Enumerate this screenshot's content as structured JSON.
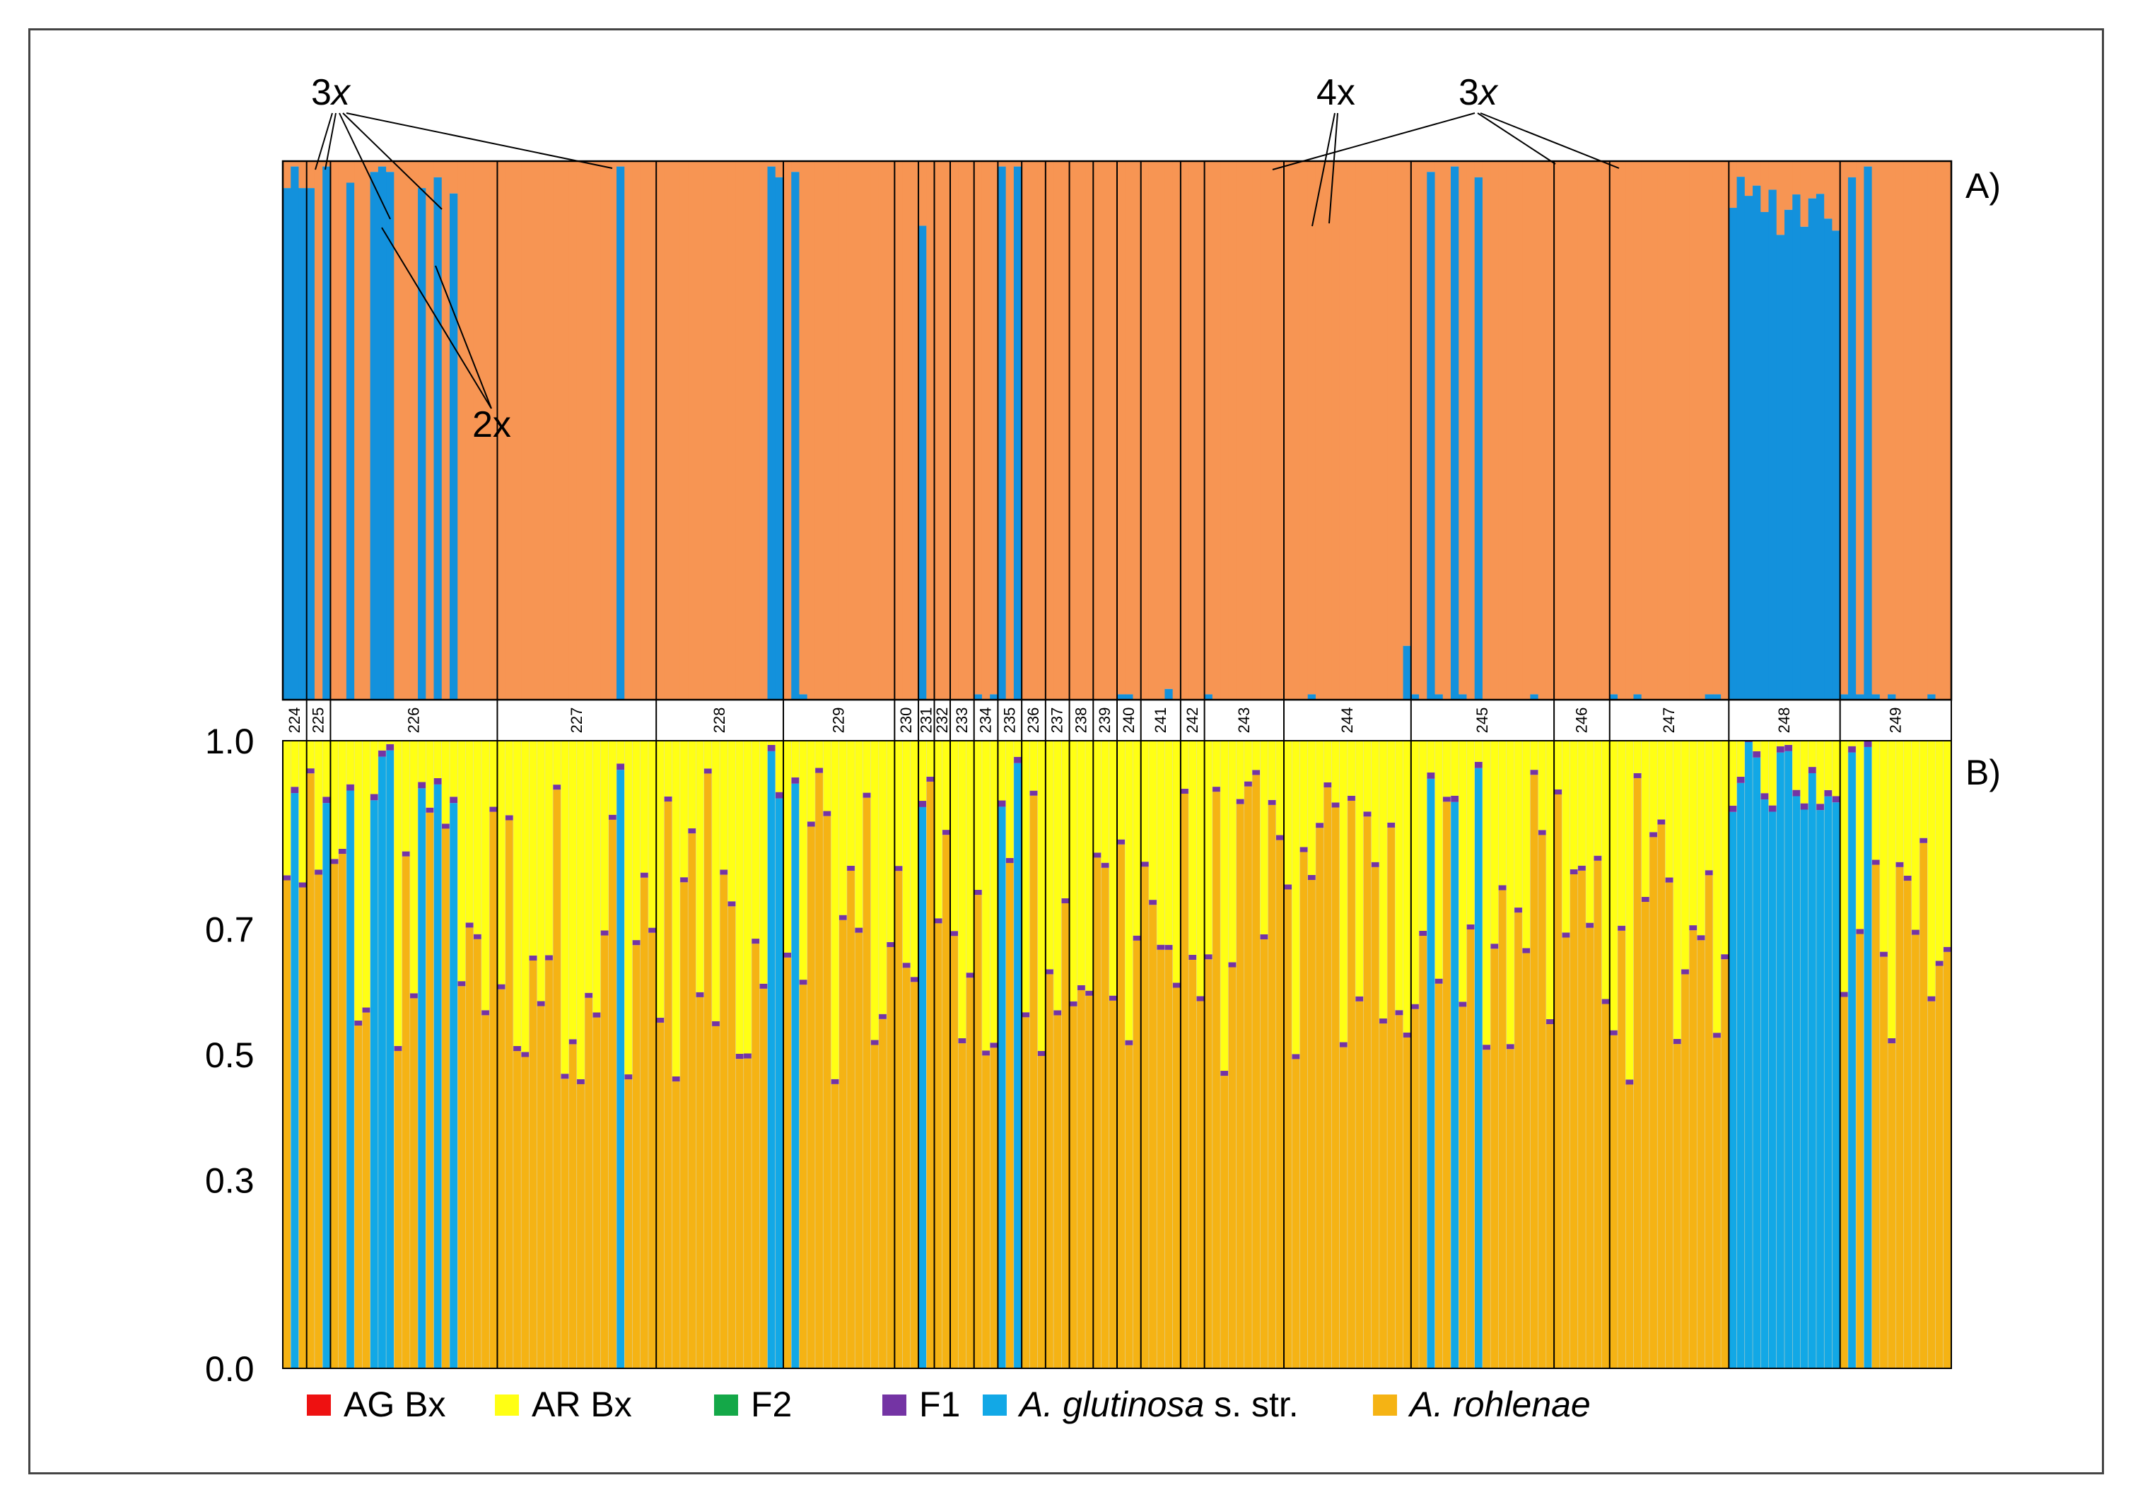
{
  "chart_data": [
    {
      "panel": "A)",
      "type": "bar",
      "stacked": true,
      "description_note": "STRUCTURE admixture proportions, K=2",
      "colors": {
        "cluster_glutinosa": "#1391DC",
        "cluster_rohlenae": "#F79553"
      },
      "ylim": [
        0,
        1
      ],
      "annotations": [
        "3x",
        "2x",
        "4x",
        "3x"
      ]
    },
    {
      "panel": "B)",
      "type": "bar",
      "stacked": true,
      "ylim": [
        0.0,
        1.0
      ],
      "ytick_labels": [
        "1.0",
        "0.7",
        "0.5",
        "0.3",
        "0.0"
      ],
      "ytick_values": [
        1.0,
        0.7,
        0.5,
        0.3,
        0.0
      ],
      "legend": [
        {
          "label": "AG Bx",
          "color": "#EE1111",
          "italic": false
        },
        {
          "label": "AR Bx",
          "color": "#FFFF14",
          "italic": false
        },
        {
          "label": "F2",
          "color": "#14A848",
          "italic": false
        },
        {
          "label": "F1",
          "color": "#7434A4",
          "italic": false
        },
        {
          "label": "A. glutinosa",
          "suffix": " s. str.",
          "color": "#12A8E6",
          "italic": true
        },
        {
          "label": "A. rohlenae",
          "suffix": "",
          "color": "#F5B314",
          "italic": true
        }
      ]
    }
  ],
  "populations": [
    {
      "id": "224",
      "n": 3
    },
    {
      "id": "225",
      "n": 3
    },
    {
      "id": "226",
      "n": 21
    },
    {
      "id": "227",
      "n": 20
    },
    {
      "id": "228",
      "n": 16
    },
    {
      "id": "229",
      "n": 14
    },
    {
      "id": "230",
      "n": 3
    },
    {
      "id": "231",
      "n": 2
    },
    {
      "id": "232",
      "n": 2
    },
    {
      "id": "233",
      "n": 3
    },
    {
      "id": "234",
      "n": 3
    },
    {
      "id": "235",
      "n": 3
    },
    {
      "id": "236",
      "n": 3
    },
    {
      "id": "237",
      "n": 3
    },
    {
      "id": "238",
      "n": 3
    },
    {
      "id": "239",
      "n": 3
    },
    {
      "id": "240",
      "n": 3
    },
    {
      "id": "241",
      "n": 5
    },
    {
      "id": "242",
      "n": 3
    },
    {
      "id": "243",
      "n": 10
    },
    {
      "id": "244",
      "n": 16
    },
    {
      "id": "245",
      "n": 18
    },
    {
      "id": "246",
      "n": 7
    },
    {
      "id": "247",
      "n": 15
    },
    {
      "id": "248",
      "n": 14
    },
    {
      "id": "249",
      "n": 14
    }
  ]
}
